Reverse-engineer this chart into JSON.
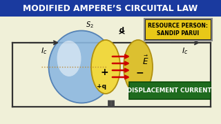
{
  "bg_color": "#f0f0d8",
  "title_text": "MODIFIED AMPERE’S CIRCUITAL LAW",
  "title_bg": "#1a3a9f",
  "title_color": "white",
  "resource_text": "RESOURCE PERSON:\nSANDIP PARUI",
  "resource_bg": "#e8c818",
  "resource_border": "#222222",
  "disp_text": "DISPLACEMENT CURRENT",
  "disp_bg": "#1e6b1e",
  "disp_color": "white",
  "Ic_label": "$I_c$",
  "q_label": "+q",
  "plus_label": "+",
  "minus_label": "−",
  "E_label": "$\\vec{E}$",
  "d_label": "d",
  "S2_label": "$S_2$",
  "circuit_color": "#333333",
  "arrow_color": "#333333",
  "blue_face": "#8cb8e0",
  "blue_edge": "#4878b0",
  "blue_highlight": "#d8eaf8",
  "lplate_face": "#f0d840",
  "lplate_edge": "#b09010",
  "rplate_face": "#dcc030",
  "rplate_edge": "#b09010",
  "field_line_color": "#cc0000",
  "dotted_line_color": "#bb8833",
  "capacitor_color": "#444444"
}
